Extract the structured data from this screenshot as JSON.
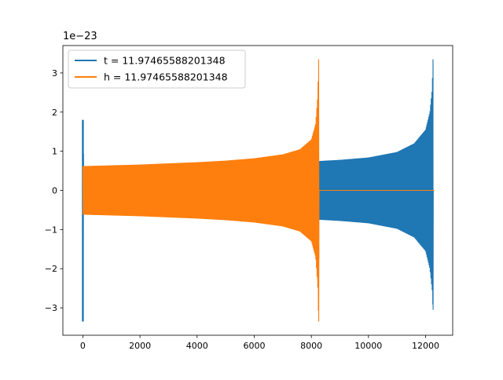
{
  "chart_data": {
    "type": "line",
    "title": "",
    "xlabel": "",
    "ylabel": "",
    "offset_text": "1e−23",
    "xlim": [
      -700,
      12950
    ],
    "ylim": [
      -3.7,
      3.7
    ],
    "xticks": [
      0,
      2000,
      4000,
      6000,
      8000,
      10000,
      12000
    ],
    "xtick_labels": [
      "0",
      "2000",
      "4000",
      "6000",
      "8000",
      "10000",
      "12000"
    ],
    "yticks": [
      -3,
      -2,
      -1,
      0,
      1,
      2,
      3
    ],
    "ytick_labels": [
      "−3",
      "−2",
      "−1",
      "0",
      "1",
      "2",
      "3"
    ],
    "grid": false,
    "legend_position": "upper-left",
    "series": [
      {
        "name": "t = 11.97465588201348",
        "color": "#1f77b4",
        "description_of_shape": "spike near x=0 (+1.8 / −3.35), oscillating chirp with amplitude growing from ±0.62 at x≈0 to ±0.75 at x≈8250 and rising to about +3.35 / −3.05 at x≈12250, then flat 0",
        "envelope": [
          {
            "x": 0,
            "upper": 1.8,
            "lower": -3.35
          },
          {
            "x": 30,
            "upper": 0.62,
            "lower": -0.62
          },
          {
            "x": 2000,
            "upper": 0.635,
            "lower": -0.635
          },
          {
            "x": 4000,
            "upper": 0.66,
            "lower": -0.66
          },
          {
            "x": 6000,
            "upper": 0.7,
            "lower": -0.7
          },
          {
            "x": 8250,
            "upper": 0.75,
            "lower": -0.75
          },
          {
            "x": 9000,
            "upper": 0.78,
            "lower": -0.78
          },
          {
            "x": 10000,
            "upper": 0.84,
            "lower": -0.84
          },
          {
            "x": 11000,
            "upper": 0.98,
            "lower": -0.98
          },
          {
            "x": 11600,
            "upper": 1.2,
            "lower": -1.2
          },
          {
            "x": 12000,
            "upper": 1.55,
            "lower": -1.55
          },
          {
            "x": 12150,
            "upper": 2.0,
            "lower": -2.0
          },
          {
            "x": 12230,
            "upper": 2.6,
            "lower": -2.55
          },
          {
            "x": 12260,
            "upper": 3.35,
            "lower": -3.05
          },
          {
            "x": 12300,
            "upper": 0.0,
            "lower": 0.0
          }
        ],
        "flat_after": 12270
      },
      {
        "name": "h = 11.97465588201348",
        "color": "#ff7f0e",
        "description_of_shape": "oscillating chirp with amplitude growing from ±0.62 at x≈0 to about +3.35 / −3.35 at x≈8260, then flat 0 until x≈12300",
        "envelope": [
          {
            "x": 0,
            "upper": 0.62,
            "lower": -0.62
          },
          {
            "x": 2000,
            "upper": 0.66,
            "lower": -0.66
          },
          {
            "x": 4000,
            "upper": 0.72,
            "lower": -0.72
          },
          {
            "x": 5000,
            "upper": 0.76,
            "lower": -0.76
          },
          {
            "x": 6000,
            "upper": 0.82,
            "lower": -0.82
          },
          {
            "x": 7000,
            "upper": 0.92,
            "lower": -0.92
          },
          {
            "x": 7600,
            "upper": 1.05,
            "lower": -1.05
          },
          {
            "x": 8000,
            "upper": 1.3,
            "lower": -1.3
          },
          {
            "x": 8150,
            "upper": 1.7,
            "lower": -1.7
          },
          {
            "x": 8220,
            "upper": 2.4,
            "lower": -2.4
          },
          {
            "x": 8255,
            "upper": 3.35,
            "lower": -3.35
          },
          {
            "x": 8280,
            "upper": 0.0,
            "lower": 0.0
          }
        ],
        "flat_after": 8270,
        "flat_until": 12300
      }
    ]
  }
}
